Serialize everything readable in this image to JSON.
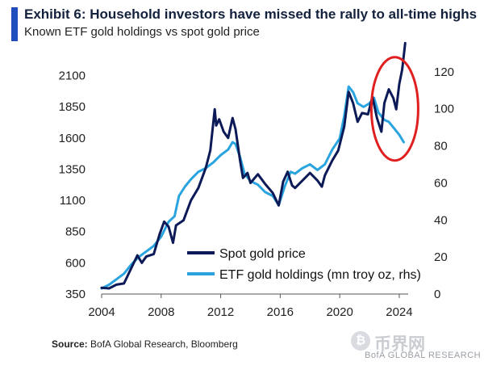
{
  "header": {
    "title": "Exhibit 6: Household investors have missed the rally to all-time highs",
    "subtitle": "Known ETF gold holdings vs spot gold price"
  },
  "source": {
    "label": "Source:",
    "text": "BofA Global Research, Bloomberg"
  },
  "watermark": {
    "logo_text": "币界网",
    "coin_glyph": "₿",
    "text": "BofA GLOBAL RESEARCH"
  },
  "colors": {
    "spot": "#0c1a57",
    "etf": "#2aa4df",
    "circle": "#e02020",
    "accent": "#1f4fbf"
  },
  "chart_data": {
    "type": "line",
    "title": "Known ETF gold holdings vs spot gold price",
    "xlabel": "",
    "ylabel": "",
    "xlim": [
      2004,
      2024.6
    ],
    "ylim": [
      350,
      2175
    ],
    "y2lim": [
      0,
      123
    ],
    "x_ticks": [
      2004,
      2008,
      2012,
      2016,
      2020,
      2024
    ],
    "y_ticks": [
      350,
      600,
      850,
      1100,
      1350,
      1600,
      1850,
      2100
    ],
    "y2_ticks": [
      0,
      20,
      40,
      60,
      80,
      100,
      120
    ],
    "legend": {
      "position": "lower-center",
      "entries": [
        "Spot gold price",
        "ETF gold holdings (mn troy oz, rhs)"
      ]
    },
    "annotation": "red ellipse highlighting 2022-2024 divergence",
    "series": [
      {
        "name": "Spot gold price",
        "axis": "left",
        "x": [
          2004.0,
          2004.5,
          2005.0,
          2005.5,
          2006.0,
          2006.4,
          2006.7,
          2007.0,
          2007.5,
          2007.9,
          2008.2,
          2008.5,
          2008.8,
          2009.0,
          2009.5,
          2010.0,
          2010.5,
          2011.0,
          2011.3,
          2011.6,
          2011.7,
          2011.9,
          2012.2,
          2012.5,
          2012.8,
          2013.0,
          2013.3,
          2013.5,
          2013.8,
          2014.0,
          2014.5,
          2015.0,
          2015.5,
          2015.9,
          2016.2,
          2016.5,
          2016.8,
          2017.0,
          2017.5,
          2018.0,
          2018.5,
          2018.8,
          2019.0,
          2019.5,
          2019.9,
          2020.3,
          2020.6,
          2020.9,
          2021.2,
          2021.5,
          2021.9,
          2022.2,
          2022.5,
          2022.8,
          2023.0,
          2023.3,
          2023.6,
          2023.8,
          2024.0,
          2024.2,
          2024.4
        ],
        "values": [
          400,
          395,
          425,
          435,
          560,
          660,
          600,
          650,
          670,
          830,
          930,
          890,
          760,
          900,
          940,
          1100,
          1200,
          1360,
          1500,
          1830,
          1700,
          1750,
          1650,
          1600,
          1760,
          1670,
          1420,
          1280,
          1320,
          1240,
          1310,
          1230,
          1160,
          1060,
          1250,
          1330,
          1220,
          1200,
          1260,
          1320,
          1260,
          1210,
          1300,
          1420,
          1500,
          1690,
          1970,
          1880,
          1730,
          1800,
          1790,
          1930,
          1760,
          1650,
          1880,
          1990,
          1920,
          1830,
          2030,
          2150,
          2360
        ]
      },
      {
        "name": "ETF gold holdings (mn troy oz, rhs)",
        "axis": "right",
        "x": [
          2004.0,
          2004.5,
          2005.0,
          2005.5,
          2006.0,
          2006.5,
          2007.0,
          2007.5,
          2008.0,
          2008.5,
          2008.9,
          2009.2,
          2009.6,
          2010.0,
          2010.5,
          2011.0,
          2011.5,
          2012.0,
          2012.5,
          2012.8,
          2013.0,
          2013.3,
          2013.6,
          2014.0,
          2014.5,
          2015.0,
          2015.5,
          2015.9,
          2016.3,
          2016.7,
          2017.0,
          2017.5,
          2018.0,
          2018.5,
          2019.0,
          2019.5,
          2020.0,
          2020.3,
          2020.6,
          2020.9,
          2021.2,
          2021.6,
          2022.0,
          2022.3,
          2022.6,
          2023.0,
          2023.3,
          2023.6,
          2024.0,
          2024.3
        ],
        "values": [
          3,
          5,
          8,
          11,
          16,
          20,
          23,
          26,
          31,
          39,
          42,
          53,
          58,
          62,
          66,
          68,
          71,
          75,
          78,
          82,
          81,
          74,
          65,
          61,
          59,
          55,
          53,
          48,
          58,
          66,
          65,
          68,
          70,
          67,
          70,
          78,
          84,
          96,
          112,
          109,
          103,
          101,
          103,
          106,
          98,
          94,
          93,
          90,
          86,
          82
        ]
      }
    ]
  }
}
